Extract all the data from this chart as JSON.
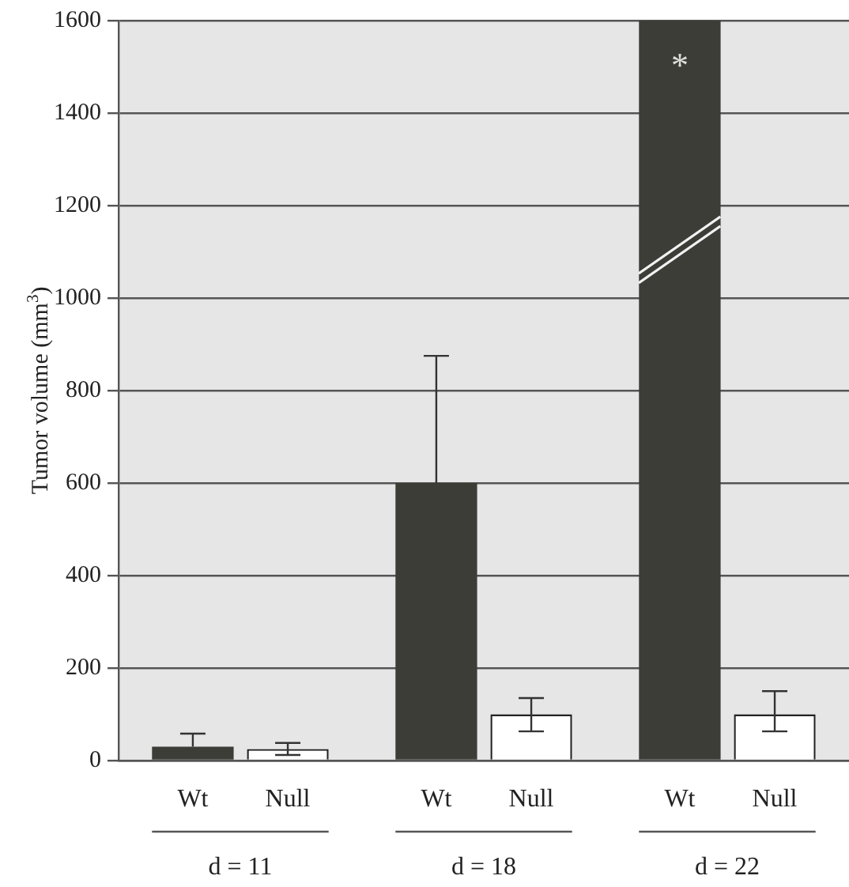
{
  "chart_data": {
    "type": "bar",
    "ylabel": "Tumor volume (mm$^{3}$)",
    "categories": [
      "d = 11",
      "d = 18",
      "d = 22"
    ],
    "series": [
      {
        "name": "Wt",
        "color": "#3d3d38",
        "values": [
          30,
          600,
          1600
        ],
        "errors": [
          [
            30,
            58
          ],
          [
            600,
            875
          ],
          null
        ]
      },
      {
        "name": "Null",
        "color": "#ffffff",
        "values": [
          25,
          100,
          100
        ],
        "errors": [
          [
            12,
            38
          ],
          [
            63,
            135
          ],
          [
            63,
            150
          ]
        ]
      }
    ],
    "annotations": [
      {
        "text": "*",
        "x": "d = 22",
        "y": 1520
      }
    ],
    "ylim": [
      0,
      1600
    ],
    "yticks": [
      0,
      200,
      400,
      600,
      800,
      1000,
      1200,
      1400,
      1600
    ],
    "grid": "y",
    "legend": false
  }
}
